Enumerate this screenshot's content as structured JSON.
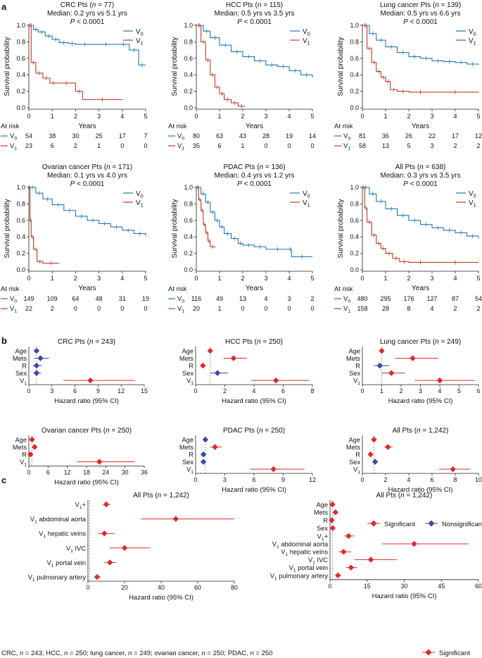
{
  "figure": {
    "panel_labels": [
      "a",
      "b",
      "c"
    ],
    "footnote": "CRC, n = 243; HCC, n = 250; lung cancer, n = 249; ovarian cancer, n = 250; PDAC, n = 250",
    "colors": {
      "v0": "#1f77b4",
      "v1": "#c0392b",
      "sig": "#e0282e",
      "nonsig": "#3b47a8"
    }
  },
  "chart_data": [
    {
      "type": "line",
      "kind": "km",
      "panel": "a",
      "title": "CRC Pts (n = 77)",
      "median": "Median: 0.2 yrs vs 5.1 yrs",
      "pvalue": "P < 0.0001",
      "xlabel": "Years",
      "ylabel": "Survival probability",
      "xlim": [
        0,
        5
      ],
      "ylim": [
        0,
        1.0
      ],
      "series": [
        {
          "name": "V0",
          "x": [
            0,
            0.2,
            0.4,
            0.7,
            1.0,
            1.3,
            1.7,
            2.0,
            2.8,
            3.8,
            4.3,
            4.7,
            5.0
          ],
          "y": [
            1.0,
            0.95,
            0.92,
            0.87,
            0.83,
            0.79,
            0.78,
            0.77,
            0.77,
            0.77,
            0.7,
            0.52,
            0.52
          ]
        },
        {
          "name": "V1",
          "x": [
            0,
            0.1,
            0.3,
            0.6,
            0.9,
            1.2,
            2.0,
            2.3,
            4.0
          ],
          "y": [
            1.0,
            0.55,
            0.42,
            0.36,
            0.3,
            0.3,
            0.2,
            0.1,
            0.1
          ]
        }
      ],
      "at_risk": {
        "label": "At risk",
        "V0": [
          "54",
          "38",
          "30",
          "25",
          "17",
          "7"
        ],
        "V1": [
          "23",
          "6",
          "2",
          "1",
          "0",
          "0"
        ]
      }
    },
    {
      "type": "line",
      "kind": "km",
      "panel": "a",
      "title": "HCC Pts (n = 115)",
      "median": "Median: 0.5 yrs vs 3.5 yrs",
      "pvalue": "P < 0.0001",
      "xlabel": "Years",
      "ylabel": "Survival probability",
      "xlim": [
        0,
        5
      ],
      "ylim": [
        0,
        1.0
      ],
      "series": [
        {
          "name": "V0",
          "x": [
            0,
            0.3,
            0.6,
            1.0,
            1.5,
            2.0,
            2.5,
            3.0,
            3.5,
            4.0,
            4.5,
            5.0
          ],
          "y": [
            1.0,
            0.93,
            0.85,
            0.76,
            0.68,
            0.62,
            0.57,
            0.52,
            0.5,
            0.45,
            0.4,
            0.37
          ]
        },
        {
          "name": "V1",
          "x": [
            0,
            0.2,
            0.4,
            0.6,
            0.8,
            1.0,
            1.2,
            1.5,
            1.8,
            2.1
          ],
          "y": [
            1.0,
            0.8,
            0.58,
            0.4,
            0.25,
            0.17,
            0.1,
            0.06,
            0.02,
            0.02
          ]
        }
      ],
      "at_risk": {
        "label": "At risk",
        "V0": [
          "80",
          "63",
          "43",
          "28",
          "19",
          "14"
        ],
        "V1": [
          "35",
          "6",
          "1",
          "0",
          "0",
          "0"
        ]
      }
    },
    {
      "type": "line",
      "kind": "km",
      "panel": "a",
      "title": "Lung cancer Pts (n = 139)",
      "median": "Median: 0.5 yrs vs 6.6 yrs",
      "pvalue": "P < 0.0001",
      "xlabel": "Years",
      "ylabel": "Survival probability",
      "xlim": [
        0,
        5
      ],
      "ylim": [
        0,
        1.0
      ],
      "series": [
        {
          "name": "V0",
          "x": [
            0,
            0.3,
            0.6,
            1.0,
            1.5,
            2.0,
            2.5,
            3.0,
            3.5,
            4.0,
            4.5,
            5.0
          ],
          "y": [
            1.0,
            0.9,
            0.82,
            0.74,
            0.67,
            0.62,
            0.6,
            0.57,
            0.56,
            0.55,
            0.53,
            0.52
          ]
        },
        {
          "name": "V1",
          "x": [
            0,
            0.2,
            0.4,
            0.6,
            0.8,
            1.0,
            1.2,
            1.5,
            2.0,
            3.0,
            5.0
          ],
          "y": [
            1.0,
            0.72,
            0.55,
            0.44,
            0.37,
            0.32,
            0.22,
            0.2,
            0.19,
            0.19,
            0.19
          ]
        }
      ],
      "at_risk": {
        "label": "At risk",
        "V0": [
          "81",
          "36",
          "26",
          "22",
          "17",
          "12"
        ],
        "V1": [
          "58",
          "13",
          "5",
          "3",
          "2",
          "2"
        ]
      }
    },
    {
      "type": "line",
      "kind": "km",
      "panel": "a",
      "title": "Ovarian cancer Pts (n = 171)",
      "median": "Median: 0.1 yrs vs 4.0 yrs",
      "pvalue": "P < 0.0001",
      "xlabel": "Years",
      "ylabel": "Survival probability",
      "xlim": [
        0,
        5
      ],
      "ylim": [
        0,
        1.0
      ],
      "series": [
        {
          "name": "V0",
          "x": [
            0,
            0.3,
            0.6,
            1.0,
            1.5,
            2.0,
            2.5,
            3.0,
            3.5,
            4.0,
            4.5,
            5.0
          ],
          "y": [
            1.0,
            0.93,
            0.86,
            0.79,
            0.72,
            0.65,
            0.6,
            0.56,
            0.52,
            0.48,
            0.44,
            0.41
          ]
        },
        {
          "name": "V1",
          "x": [
            0,
            0.05,
            0.1,
            0.2,
            0.35,
            0.6,
            1.3
          ],
          "y": [
            1.0,
            0.6,
            0.4,
            0.25,
            0.1,
            0.08,
            0.08
          ]
        }
      ],
      "at_risk": {
        "label": "At risk",
        "V0": [
          "149",
          "109",
          "64",
          "48",
          "31",
          "19"
        ],
        "V1": [
          "22",
          "2",
          "0",
          "0",
          "0",
          "0"
        ]
      }
    },
    {
      "type": "line",
      "kind": "km",
      "panel": "a",
      "title": "PDAC Pts (n = 136)",
      "median": "Median: 0.4 yrs vs 1.2 yrs",
      "pvalue": "P < 0.0001",
      "xlabel": "Years",
      "ylabel": "Survival probability",
      "xlim": [
        0,
        5
      ],
      "ylim": [
        0,
        1.0
      ],
      "series": [
        {
          "name": "V0",
          "x": [
            0,
            0.2,
            0.4,
            0.6,
            0.8,
            1.0,
            1.2,
            1.5,
            1.8,
            2.0,
            2.5,
            3.0,
            4.0,
            4.1,
            5.0
          ],
          "y": [
            1.0,
            0.92,
            0.82,
            0.7,
            0.6,
            0.52,
            0.44,
            0.38,
            0.32,
            0.3,
            0.28,
            0.25,
            0.25,
            0.16,
            0.16
          ]
        },
        {
          "name": "V1",
          "x": [
            0,
            0.1,
            0.2,
            0.3,
            0.4,
            0.5,
            0.6,
            0.8
          ],
          "y": [
            1.0,
            0.85,
            0.72,
            0.55,
            0.45,
            0.35,
            0.28,
            0.27
          ]
        }
      ],
      "at_risk": {
        "label": "At risk",
        "V0": [
          "116",
          "49",
          "13",
          "4",
          "3",
          "2"
        ],
        "V1": [
          "20",
          "1",
          "0",
          "0",
          "0",
          "0"
        ]
      }
    },
    {
      "type": "line",
      "kind": "km",
      "panel": "a",
      "title": "All Pts (n = 638)",
      "median": "Median: 0.3 yrs vs 3.5 yrs",
      "pvalue": "P < 0.0001",
      "xlabel": "Years",
      "ylabel": "Survival probability",
      "xlim": [
        0,
        5
      ],
      "ylim": [
        0,
        1.0
      ],
      "series": [
        {
          "name": "V0",
          "x": [
            0,
            0.3,
            0.6,
            1.0,
            1.5,
            2.0,
            2.5,
            3.0,
            3.5,
            4.0,
            4.5,
            5.0
          ],
          "y": [
            1.0,
            0.92,
            0.83,
            0.74,
            0.66,
            0.6,
            0.55,
            0.51,
            0.48,
            0.45,
            0.41,
            0.38
          ]
        },
        {
          "name": "V1",
          "x": [
            0,
            0.1,
            0.2,
            0.4,
            0.6,
            0.8,
            1.0,
            1.3,
            1.6,
            2.0,
            3.0,
            5.0
          ],
          "y": [
            1.0,
            0.75,
            0.58,
            0.42,
            0.32,
            0.26,
            0.2,
            0.14,
            0.1,
            0.09,
            0.09,
            0.09
          ]
        }
      ],
      "at_risk": {
        "label": "At risk",
        "V0": [
          "480",
          "295",
          "176",
          "127",
          "87",
          "54"
        ],
        "V1": [
          "158",
          "28",
          "8",
          "4",
          "2",
          "2"
        ]
      }
    },
    {
      "type": "forest",
      "panel": "b",
      "title": "CRC Pts (n = 243)",
      "xlabel": "Hazard ratio (95% CI)",
      "xlim": [
        0,
        15
      ],
      "ticks": [
        "0",
        "3",
        "6",
        "9",
        "12",
        "15"
      ],
      "ref": 1,
      "rows": [
        {
          "label": "Age",
          "hr": 1.0,
          "lo": 0.8,
          "hi": 1.2,
          "sig": false
        },
        {
          "label": "Mets",
          "hr": 1.5,
          "lo": 0.7,
          "hi": 2.6,
          "sig": false
        },
        {
          "label": "R",
          "hr": 1.0,
          "lo": 0.5,
          "hi": 1.7,
          "sig": false
        },
        {
          "label": "Sex",
          "hr": 1.0,
          "lo": 0.6,
          "hi": 1.6,
          "sig": false
        },
        {
          "label": "V1",
          "hr": 8.0,
          "lo": 4.5,
          "hi": 13.8,
          "sig": true
        }
      ]
    },
    {
      "type": "forest",
      "panel": "b",
      "title": "HCC Pts (n = 250)",
      "xlabel": "Hazard ratio (95% CI)",
      "xlim": [
        0,
        8
      ],
      "ticks": [
        "0",
        "2",
        "4",
        "6",
        "8"
      ],
      "ref": 1,
      "rows": [
        {
          "label": "Age",
          "hr": 1.0,
          "lo": 0.9,
          "hi": 1.1,
          "sig": true
        },
        {
          "label": "Mets",
          "hr": 2.6,
          "lo": 1.9,
          "hi": 3.5,
          "sig": true
        },
        {
          "label": "R",
          "hr": 0.5,
          "lo": 0.4,
          "hi": 0.7,
          "sig": true
        },
        {
          "label": "Sex",
          "hr": 1.5,
          "lo": 1.0,
          "hi": 2.2,
          "sig": false
        },
        {
          "label": "V1",
          "hr": 5.5,
          "lo": 3.8,
          "hi": 7.8,
          "sig": true
        }
      ]
    },
    {
      "type": "forest",
      "panel": "b",
      "title": "Lung cancer Pts (n = 249)",
      "xlabel": "Hazard ratio (95% CI)",
      "xlim": [
        0,
        6
      ],
      "ticks": [
        "0",
        "1",
        "2",
        "3",
        "4",
        "5",
        "6"
      ],
      "ref": 1,
      "rows": [
        {
          "label": "Age",
          "hr": 1.0,
          "lo": 0.9,
          "hi": 1.1,
          "sig": true
        },
        {
          "label": "Mets",
          "hr": 2.6,
          "lo": 1.7,
          "hi": 3.9,
          "sig": true
        },
        {
          "label": "R",
          "hr": 0.9,
          "lo": 0.6,
          "hi": 1.4,
          "sig": false
        },
        {
          "label": "Sex",
          "hr": 1.5,
          "lo": 1.0,
          "hi": 2.2,
          "sig": true
        },
        {
          "label": "V1",
          "hr": 4.0,
          "lo": 2.7,
          "hi": 5.8,
          "sig": true
        }
      ]
    },
    {
      "type": "forest",
      "panel": "b",
      "title": "Ovarian cancer Pts (n = 250)",
      "xlabel": "Hazard ratio (95% CI)",
      "xlim": [
        0,
        36
      ],
      "ticks": [
        "0",
        "6",
        "12",
        "18",
        "24",
        "30",
        "36"
      ],
      "ref": 1,
      "rows": [
        {
          "label": "Age",
          "hr": 1.0,
          "lo": 0.9,
          "hi": 1.1,
          "sig": true
        },
        {
          "label": "Mets",
          "hr": 1.8,
          "lo": 1.3,
          "hi": 2.4,
          "sig": true
        },
        {
          "label": "R",
          "hr": 0.5,
          "lo": 0.3,
          "hi": 0.8,
          "sig": true
        },
        {
          "label": "V1",
          "hr": 22.0,
          "lo": 15.0,
          "hi": 33.0,
          "sig": true
        }
      ]
    },
    {
      "type": "forest",
      "panel": "b",
      "title": "PDAC Pts (n = 250)",
      "xlabel": "Hazard ratio (95% CI)",
      "xlim": [
        0,
        12
      ],
      "ticks": [
        "0",
        "3",
        "6",
        "9",
        "12"
      ],
      "ref": 1,
      "rows": [
        {
          "label": "Age",
          "hr": 1.0,
          "lo": 0.9,
          "hi": 1.1,
          "sig": false
        },
        {
          "label": "Mets",
          "hr": 2.0,
          "lo": 1.5,
          "hi": 2.7,
          "sig": true
        },
        {
          "label": "R",
          "hr": 0.8,
          "lo": 0.6,
          "hi": 1.1,
          "sig": false
        },
        {
          "label": "Sex",
          "hr": 0.8,
          "lo": 0.6,
          "hi": 1.1,
          "sig": false
        },
        {
          "label": "V1",
          "hr": 8.0,
          "lo": 5.6,
          "hi": 11.2,
          "sig": true
        }
      ]
    },
    {
      "type": "forest",
      "panel": "b",
      "title": "All Pts (n = 1,242)",
      "xlabel": "Hazard ratio (95% CI)",
      "xlim": [
        0,
        10
      ],
      "ticks": [
        "0",
        "2",
        "4",
        "6",
        "8",
        "10"
      ],
      "ref": 1,
      "rows": [
        {
          "label": "Age",
          "hr": 1.0,
          "lo": 0.9,
          "hi": 1.1,
          "sig": true
        },
        {
          "label": "Mets",
          "hr": 2.2,
          "lo": 1.9,
          "hi": 2.6,
          "sig": true
        },
        {
          "label": "R",
          "hr": 0.7,
          "lo": 0.6,
          "hi": 0.8,
          "sig": true
        },
        {
          "label": "Sex",
          "hr": 1.1,
          "lo": 0.9,
          "hi": 1.3,
          "sig": false
        },
        {
          "label": "V1",
          "hr": 7.8,
          "lo": 6.6,
          "hi": 9.3,
          "sig": true
        }
      ]
    },
    {
      "type": "forest",
      "panel": "c",
      "title": "All Pts (n = 1,242)",
      "xlabel": "Hazard ratio (95% CI)",
      "xlim": [
        0,
        80
      ],
      "ticks": [
        "0",
        "20",
        "40",
        "60",
        "80"
      ],
      "ref": 1,
      "rows": [
        {
          "label": "V1+",
          "hr": 10.0,
          "lo": 8.0,
          "hi": 12.5,
          "sig": true
        },
        {
          "label": "V1 abdominal aorta",
          "hr": 48.0,
          "lo": 29.0,
          "hi": 80.0,
          "sig": true
        },
        {
          "label": "V1 hepatic veins",
          "hr": 9.0,
          "lo": 5.5,
          "hi": 14.5,
          "sig": true
        },
        {
          "label": "V1 IVC",
          "hr": 20.0,
          "lo": 12.0,
          "hi": 34.0,
          "sig": true
        },
        {
          "label": "V1 portal vein",
          "hr": 12.0,
          "lo": 9.0,
          "hi": 15.5,
          "sig": true
        },
        {
          "label": "V1 pulmonary artery",
          "hr": 5.0,
          "lo": 3.5,
          "hi": 7.0,
          "sig": true
        }
      ]
    },
    {
      "type": "forest",
      "panel": "c",
      "title": "All Pts (n = 1,242)",
      "xlabel": "Hazard ratio (95% CI)",
      "xlim": [
        0,
        60
      ],
      "ticks": [
        "0",
        "15",
        "30",
        "45",
        "60"
      ],
      "ref": 1,
      "rows": [
        {
          "label": "Age",
          "hr": 1.0,
          "lo": 0.9,
          "hi": 1.1,
          "sig": true
        },
        {
          "label": "Mets",
          "hr": 2.2,
          "lo": 1.9,
          "hi": 2.6,
          "sig": true
        },
        {
          "label": "R",
          "hr": 0.7,
          "lo": 0.6,
          "hi": 0.8,
          "sig": true
        },
        {
          "label": "Sex",
          "hr": 1.1,
          "lo": 0.9,
          "hi": 1.3,
          "sig": true
        },
        {
          "label": "V1+",
          "hr": 7.5,
          "lo": 5.8,
          "hi": 9.8,
          "sig": true
        },
        {
          "label": "V1 abdominal aorta",
          "hr": 34.0,
          "lo": 21.0,
          "hi": 56.0,
          "sig": true
        },
        {
          "label": "V1 hepatic veins",
          "hr": 5.5,
          "lo": 3.5,
          "hi": 8.5,
          "sig": true
        },
        {
          "label": "V1 IVC",
          "hr": 16.5,
          "lo": 10.0,
          "hi": 27.0,
          "sig": true
        },
        {
          "label": "V1 portal vein",
          "hr": 8.5,
          "lo": 6.5,
          "hi": 11.0,
          "sig": true
        },
        {
          "label": "V1 pulmonary artery",
          "hr": 3.2,
          "lo": 2.2,
          "hi": 4.5,
          "sig": true
        }
      ]
    }
  ],
  "legend_b": {
    "significant": "Significant",
    "nonsignificant": "Nonsignificant"
  },
  "legend_c": {
    "significant": "Significant"
  }
}
